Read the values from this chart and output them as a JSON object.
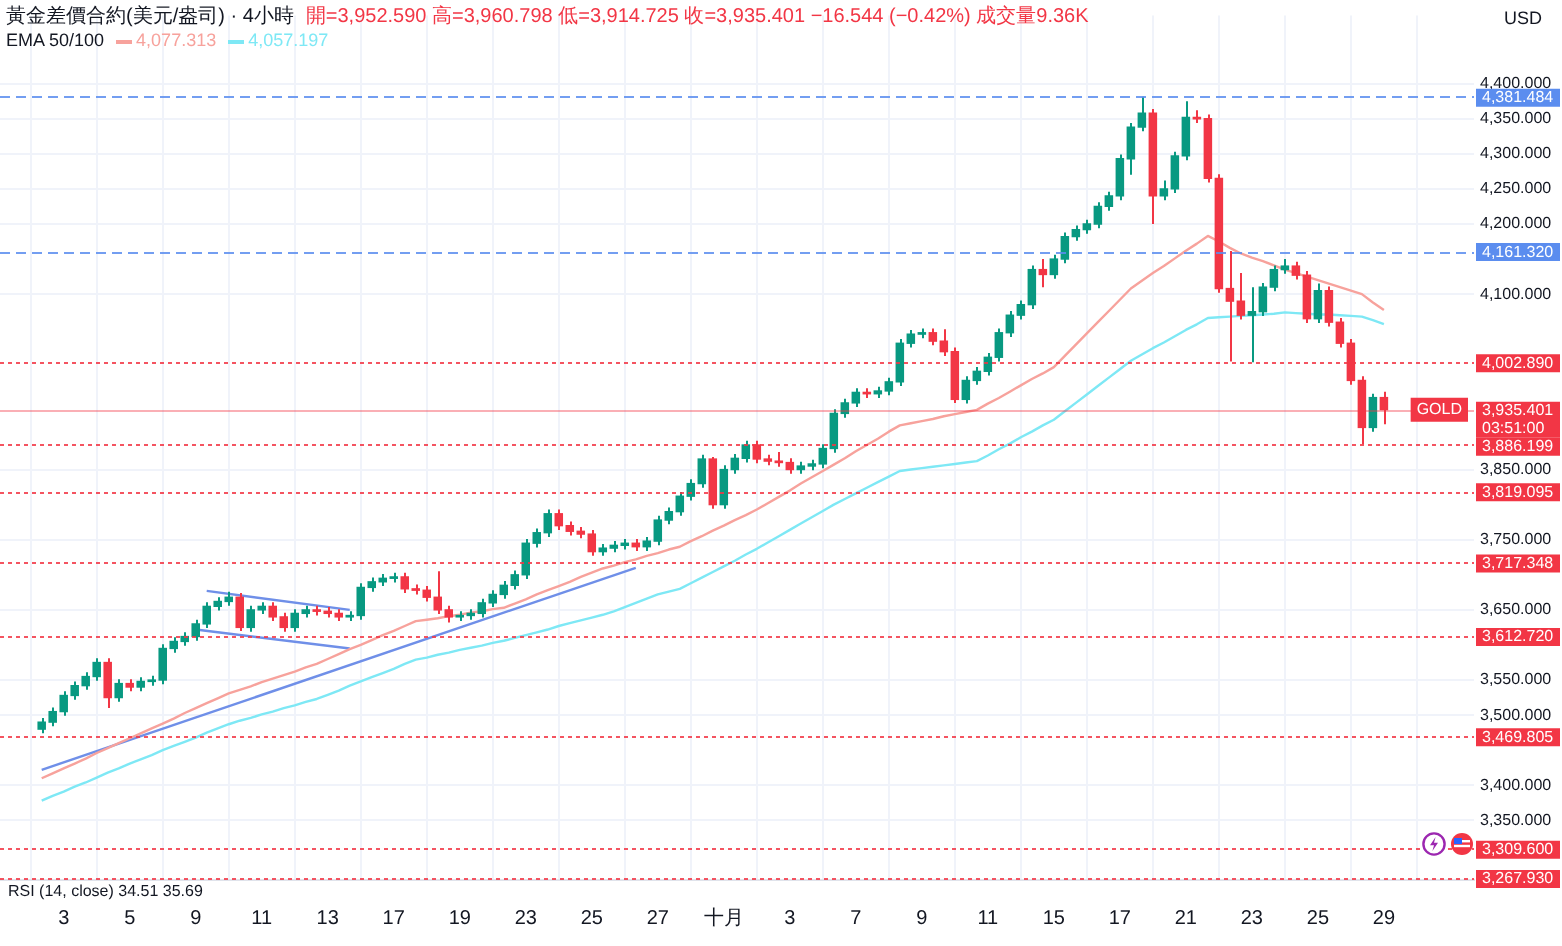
{
  "chart_data": {
    "type": "candlestick",
    "title": "黃金差價合約(美元/盎司) · 4小時",
    "subtitle": "開=3,952.590 高=3,960.798 低=3,914.725 收=3,935.401 −16.544 (−0.42%) 成交量9.36K",
    "ylabel": "USD",
    "categories": [
      null,
      null,
      "3",
      null,
      null,
      null,
      null,
      null,
      "5",
      null,
      null,
      null,
      null,
      null,
      "9",
      null,
      null,
      null,
      null,
      null,
      "11",
      null,
      null,
      null,
      null,
      null,
      "13",
      null,
      null,
      null,
      null,
      null,
      "17",
      null,
      null,
      null,
      null,
      null,
      "19",
      null,
      null,
      null,
      null,
      null,
      "23",
      null,
      null,
      null,
      null,
      null,
      "25",
      null,
      null,
      null,
      null,
      null,
      "27",
      null,
      null,
      null,
      null,
      null,
      "十月",
      null,
      null,
      null,
      null,
      null,
      "3",
      null,
      null,
      null,
      null,
      null,
      "7",
      null,
      null,
      null,
      null,
      null,
      "9",
      null,
      null,
      null,
      null,
      null,
      "11",
      null,
      null,
      null,
      null,
      null,
      "15",
      null,
      null,
      null,
      null,
      null,
      "17",
      null,
      null,
      null,
      null,
      null,
      "21",
      null,
      null,
      null,
      null,
      null,
      "23",
      null,
      null,
      null,
      null,
      null,
      "25",
      null,
      null,
      null,
      null,
      null,
      "29"
    ],
    "ohlc": [
      [
        3480,
        3496,
        3474,
        3490
      ],
      [
        3490,
        3511,
        3484,
        3505
      ],
      [
        3505,
        3534,
        3499,
        3528
      ],
      [
        3528,
        3548,
        3522,
        3542
      ],
      [
        3542,
        3561,
        3536,
        3555
      ],
      [
        3555,
        3581,
        3549,
        3575
      ],
      [
        3575,
        3581,
        3510,
        3525
      ],
      [
        3525,
        3551,
        3519,
        3545
      ],
      [
        3545,
        3551,
        3534,
        3540
      ],
      [
        3540,
        3554,
        3534,
        3548
      ],
      [
        3548,
        3556,
        3542,
        3550
      ],
      [
        3550,
        3601,
        3544,
        3595
      ],
      [
        3595,
        3611,
        3589,
        3605
      ],
      [
        3605,
        3618,
        3599,
        3612
      ],
      [
        3612,
        3636,
        3606,
        3630
      ],
      [
        3630,
        3661,
        3624,
        3655
      ],
      [
        3655,
        3668,
        3649,
        3662
      ],
      [
        3662,
        3676,
        3656,
        3668
      ],
      [
        3668,
        3674,
        3620,
        3625
      ],
      [
        3625,
        3656,
        3619,
        3650
      ],
      [
        3650,
        3661,
        3644,
        3655
      ],
      [
        3655,
        3661,
        3634,
        3640
      ],
      [
        3640,
        3646,
        3619,
        3625
      ],
      [
        3625,
        3651,
        3619,
        3645
      ],
      [
        3645,
        3656,
        3639,
        3650
      ],
      [
        3650,
        3656,
        3642,
        3648
      ],
      [
        3648,
        3654,
        3639,
        3645
      ],
      [
        3645,
        3651,
        3634,
        3640
      ],
      [
        3640,
        3648,
        3634,
        3642
      ],
      [
        3642,
        3688,
        3636,
        3682
      ],
      [
        3682,
        3696,
        3676,
        3690
      ],
      [
        3690,
        3701,
        3684,
        3695
      ],
      [
        3695,
        3703,
        3689,
        3697
      ],
      [
        3697,
        3703,
        3674,
        3680
      ],
      [
        3680,
        3686,
        3672,
        3678
      ],
      [
        3678,
        3684,
        3662,
        3668
      ],
      [
        3668,
        3705,
        3644,
        3650
      ],
      [
        3650,
        3656,
        3632,
        3640
      ],
      [
        3640,
        3648,
        3634,
        3642
      ],
      [
        3642,
        3651,
        3636,
        3645
      ],
      [
        3645,
        3666,
        3639,
        3660
      ],
      [
        3660,
        3678,
        3654,
        3672
      ],
      [
        3672,
        3691,
        3666,
        3685
      ],
      [
        3685,
        3706,
        3679,
        3700
      ],
      [
        3700,
        3751,
        3694,
        3745
      ],
      [
        3745,
        3766,
        3739,
        3760
      ],
      [
        3760,
        3793,
        3754,
        3787
      ],
      [
        3787,
        3793,
        3764,
        3770
      ],
      [
        3770,
        3776,
        3756,
        3762
      ],
      [
        3762,
        3768,
        3752,
        3758
      ],
      [
        3758,
        3764,
        3727,
        3733
      ],
      [
        3733,
        3744,
        3727,
        3738
      ],
      [
        3738,
        3748,
        3732,
        3742
      ],
      [
        3742,
        3751,
        3736,
        3745
      ],
      [
        3745,
        3751,
        3734,
        3740
      ],
      [
        3740,
        3754,
        3734,
        3748
      ],
      [
        3748,
        3784,
        3742,
        3778
      ],
      [
        3778,
        3796,
        3772,
        3790
      ],
      [
        3790,
        3818,
        3784,
        3812
      ],
      [
        3812,
        3836,
        3806,
        3830
      ],
      [
        3830,
        3871,
        3824,
        3865
      ],
      [
        3865,
        3868,
        3794,
        3800
      ],
      [
        3800,
        3856,
        3794,
        3850
      ],
      [
        3850,
        3872,
        3844,
        3866
      ],
      [
        3866,
        3891,
        3860,
        3885
      ],
      [
        3885,
        3891,
        3859,
        3865
      ],
      [
        3865,
        3871,
        3856,
        3862
      ],
      [
        3862,
        3875,
        3854,
        3860
      ],
      [
        3860,
        3866,
        3844,
        3850
      ],
      [
        3850,
        3861,
        3844,
        3855
      ],
      [
        3855,
        3864,
        3849,
        3858
      ],
      [
        3858,
        3886,
        3852,
        3880
      ],
      [
        3880,
        3936,
        3874,
        3930
      ],
      [
        3930,
        3951,
        3924,
        3945
      ],
      [
        3945,
        3966,
        3939,
        3960
      ],
      [
        3960,
        3966,
        3952,
        3958
      ],
      [
        3958,
        3968,
        3952,
        3962
      ],
      [
        3962,
        3981,
        3956,
        3975
      ],
      [
        3975,
        4036,
        3969,
        4030
      ],
      [
        4030,
        4049,
        4024,
        4043
      ],
      [
        4043,
        4051,
        4037,
        4045
      ],
      [
        4045,
        4051,
        4027,
        4033
      ],
      [
        4033,
        4050,
        4012,
        4018
      ],
      [
        4018,
        4024,
        3945,
        3950
      ],
      [
        3950,
        3983,
        3944,
        3977
      ],
      [
        3977,
        3996,
        3971,
        3990
      ],
      [
        3990,
        4016,
        3984,
        4010
      ],
      [
        4010,
        4051,
        4004,
        4045
      ],
      [
        4045,
        4076,
        4039,
        4070
      ],
      [
        4070,
        4091,
        4064,
        4085
      ],
      [
        4085,
        4141,
        4079,
        4135
      ],
      [
        4135,
        4150,
        4110,
        4128
      ],
      [
        4128,
        4156,
        4122,
        4150
      ],
      [
        4150,
        4188,
        4144,
        4182
      ],
      [
        4182,
        4198,
        4176,
        4192
      ],
      [
        4192,
        4206,
        4186,
        4200
      ],
      [
        4200,
        4231,
        4194,
        4225
      ],
      [
        4225,
        4246,
        4219,
        4240
      ],
      [
        4240,
        4299,
        4234,
        4293
      ],
      [
        4293,
        4344,
        4270,
        4338
      ],
      [
        4338,
        4381.484,
        4332,
        4358
      ],
      [
        4358,
        4364,
        4200,
        4240
      ],
      [
        4240,
        4262,
        4234,
        4250
      ],
      [
        4250,
        4303,
        4244,
        4297
      ],
      [
        4297,
        4375,
        4291,
        4352
      ],
      [
        4352,
        4362,
        4344,
        4350
      ],
      [
        4350,
        4356,
        4259,
        4265
      ],
      [
        4265,
        4271,
        4102,
        4108
      ],
      [
        4108,
        4161.32,
        4004,
        4090
      ],
      [
        4090,
        4130,
        4064,
        4070
      ],
      [
        4070,
        4110,
        4003,
        4075
      ],
      [
        4075,
        4116,
        4069,
        4110
      ],
      [
        4110,
        4141,
        4104,
        4135
      ],
      [
        4135,
        4150,
        4129,
        4140
      ],
      [
        4140,
        4146,
        4121,
        4127
      ],
      [
        4127,
        4133,
        4059,
        4065
      ],
      [
        4065,
        4115,
        4059,
        4105
      ],
      [
        4105,
        4111,
        4054,
        4060
      ],
      [
        4060,
        4066,
        4024,
        4030
      ],
      [
        4030,
        4036,
        3971,
        3977
      ],
      [
        3977,
        3983,
        3886.199,
        3910
      ],
      [
        3910,
        3958,
        3904,
        3952.59
      ],
      [
        3952.59,
        3960.798,
        3914.725,
        3935.401
      ]
    ],
    "series": [
      {
        "name": "4,077.313",
        "type": "line",
        "color": "#f7a29c",
        "values": [
          3410,
          3417,
          3424,
          3431,
          3438,
          3446,
          3453,
          3460,
          3467,
          3474,
          3481,
          3488,
          3495,
          3503,
          3510,
          3517,
          3524,
          3531,
          3536,
          3541,
          3547,
          3552,
          3557,
          3562,
          3568,
          3573,
          3580,
          3587,
          3594,
          3600,
          3607,
          3614,
          3620,
          3627,
          3634,
          3636,
          3638,
          3641,
          3643,
          3646,
          3648,
          3651,
          3653,
          3659,
          3665,
          3672,
          3678,
          3684,
          3690,
          3697,
          3703,
          3709,
          3713,
          3718,
          3722,
          3727,
          3731,
          3736,
          3740,
          3748,
          3755,
          3763,
          3770,
          3778,
          3785,
          3793,
          3802,
          3811,
          3820,
          3830,
          3839,
          3848,
          3857,
          3866,
          3876,
          3885,
          3894,
          3904,
          3913,
          3916,
          3919,
          3922,
          3926,
          3929,
          3932,
          3935,
          3944,
          3952,
          3961,
          3970,
          3979,
          3987,
          3996,
          4012,
          4028,
          4044,
          4060,
          4076,
          4092,
          4108,
          4119,
          4130,
          4140,
          4151,
          4162,
          4172,
          4183,
          4175,
          4166,
          4158,
          4152,
          4147,
          4141,
          4135,
          4130,
          4125,
          4120,
          4115,
          4110,
          4105,
          4100,
          4088,
          4077.313
        ]
      },
      {
        "name": "4,057.197",
        "type": "line",
        "color": "#7ee8f5",
        "values": [
          3378,
          3385,
          3391,
          3398,
          3404,
          3411,
          3418,
          3424,
          3431,
          3437,
          3443,
          3450,
          3456,
          3462,
          3468,
          3475,
          3481,
          3487,
          3492,
          3496,
          3501,
          3505,
          3510,
          3514,
          3519,
          3523,
          3529,
          3535,
          3542,
          3548,
          3554,
          3560,
          3566,
          3573,
          3579,
          3582,
          3586,
          3589,
          3593,
          3596,
          3599,
          3603,
          3606,
          3610,
          3614,
          3618,
          3622,
          3627,
          3631,
          3635,
          3639,
          3643,
          3648,
          3654,
          3660,
          3666,
          3672,
          3676,
          3680,
          3688,
          3696,
          3704,
          3712,
          3720,
          3729,
          3737,
          3746,
          3755,
          3764,
          3773,
          3782,
          3791,
          3800,
          3808,
          3816,
          3824,
          3832,
          3840,
          3848,
          3850,
          3852,
          3854,
          3856,
          3858,
          3860,
          3862,
          3870,
          3879,
          3887,
          3896,
          3904,
          3913,
          3921,
          3933,
          3945,
          3957,
          3969,
          3981,
          3993,
          4005,
          4014,
          4023,
          4031,
          4040,
          4049,
          4057,
          4066,
          4067,
          4068,
          4069,
          4070,
          4071,
          4072,
          4074,
          4073,
          4072,
          4071,
          4071,
          4070,
          4069,
          4068,
          4063,
          4057.197
        ]
      },
      {
        "type": "line",
        "color": "#6f8fe8",
        "values": [
          null,
          null,
          null,
          null,
          null,
          null,
          null,
          null,
          null,
          null,
          null,
          null,
          null,
          null,
          null,
          3677,
          null,
          null,
          null,
          null,
          null,
          null,
          null,
          null,
          null,
          null,
          null,
          null,
          3650,
          null,
          null,
          null,
          null,
          null,
          null,
          null,
          null,
          null,
          null,
          null,
          null,
          null,
          null,
          null,
          null,
          null,
          null,
          null,
          null,
          null,
          null,
          null,
          null,
          null,
          null,
          null,
          null,
          null,
          null,
          null,
          null,
          null,
          null,
          null,
          null,
          null,
          null,
          null,
          null,
          null,
          null,
          null,
          null,
          null,
          null,
          null,
          null,
          null,
          null,
          null,
          null,
          null,
          null,
          null,
          null,
          null,
          null,
          null,
          null,
          null,
          null,
          null,
          null,
          null,
          null,
          null,
          null,
          null,
          null,
          null,
          null,
          null,
          null,
          null,
          null,
          null,
          null,
          null,
          null,
          null,
          null,
          null,
          null,
          null,
          null,
          null,
          null,
          null,
          null,
          null,
          null,
          null,
          null
        ]
      },
      {
        "type": "line",
        "color": "#6f8fe8",
        "values": [
          null,
          null,
          null,
          null,
          null,
          null,
          null,
          null,
          null,
          null,
          null,
          null,
          null,
          null,
          3622,
          null,
          null,
          null,
          null,
          null,
          null,
          null,
          null,
          null,
          null,
          null,
          null,
          null,
          3595,
          null,
          null,
          null,
          null,
          null,
          null,
          null,
          null,
          null,
          null,
          null,
          null,
          null,
          null,
          null,
          null,
          null,
          null,
          null,
          null,
          null,
          null,
          null,
          null,
          null,
          null,
          null,
          null,
          null,
          null,
          null,
          null,
          null,
          null,
          null,
          null,
          null,
          null,
          null,
          null,
          null,
          null,
          null,
          null,
          null,
          null,
          null,
          null,
          null,
          null,
          null,
          null,
          null,
          null,
          null,
          null,
          null,
          null,
          null,
          null,
          null,
          null,
          null,
          null,
          null,
          null,
          null,
          null,
          null,
          null,
          null,
          null,
          null,
          null,
          null,
          null,
          null,
          null,
          null,
          null,
          null,
          null,
          null,
          null,
          null,
          null,
          null,
          null,
          null,
          null,
          null,
          null,
          null,
          null
        ]
      },
      {
        "type": "line",
        "color": "#6f8fe8",
        "values": [
          3422,
          null,
          null,
          null,
          null,
          null,
          null,
          null,
          null,
          null,
          null,
          null,
          null,
          null,
          null,
          null,
          null,
          null,
          null,
          null,
          null,
          null,
          null,
          null,
          null,
          null,
          null,
          null,
          null,
          null,
          null,
          null,
          null,
          null,
          null,
          null,
          null,
          null,
          null,
          null,
          null,
          null,
          null,
          null,
          null,
          null,
          null,
          null,
          null,
          null,
          null,
          null,
          null,
          null,
          3710,
          null,
          null,
          null,
          null,
          null,
          null,
          null,
          null,
          null,
          null,
          null,
          null,
          null,
          null,
          null,
          null,
          null,
          null,
          null,
          null,
          null,
          null,
          null,
          null,
          null,
          null,
          null,
          null,
          null,
          null,
          null,
          null,
          null,
          null,
          null,
          null,
          null,
          null,
          null,
          null,
          null,
          null,
          null,
          null,
          null,
          null,
          null,
          null,
          null,
          null,
          null,
          null,
          null,
          null,
          null,
          null,
          null,
          null,
          null,
          null,
          null,
          null,
          null,
          null,
          null,
          null,
          null,
          null
        ]
      }
    ],
    "legend": "top left",
    "legend_title": "EMA 50/100",
    "marker": "none",
    "grid": true,
    "ylim": [
      3265,
      4497
    ],
    "yticks": [
      {
        "value": 4400,
        "label": "4,400.000"
      },
      {
        "value": 4350,
        "label": "4,350.000"
      },
      {
        "value": 4300,
        "label": "4,300.000"
      },
      {
        "value": 4250,
        "label": "4,250.000"
      },
      {
        "value": 4200,
        "label": "4,200.000"
      },
      {
        "value": 4100,
        "label": "4,100.000"
      },
      {
        "value": 3850,
        "label": "3,850.000"
      },
      {
        "value": 3750,
        "label": "3,750.000"
      },
      {
        "value": 3650,
        "label": "3,650.000"
      },
      {
        "value": 3550,
        "label": "3,550.000"
      },
      {
        "value": 3500,
        "label": "3,500.000"
      },
      {
        "value": 3400,
        "label": "3,400.000"
      },
      {
        "value": 3350,
        "label": "3,350.000"
      }
    ],
    "ref_lines": [
      {
        "axis": "y",
        "value": 4381.484,
        "label": "4,381.484",
        "color": "#5b8def",
        "line_style": "dashed"
      },
      {
        "axis": "y",
        "value": 4161.32,
        "label": "4,161.320",
        "color": "#5b8def",
        "line_style": "dashed"
      },
      {
        "axis": "y",
        "value": 4002.89,
        "label": "4,002.890",
        "color": "#f23645",
        "line_style": "dotted"
      },
      {
        "axis": "y",
        "value": 3935.401,
        "label": "3,935.401\n03:51:00",
        "color": "#f23645",
        "line_style": "solid"
      },
      {
        "axis": "y",
        "value": 3886.199,
        "label": "3,886.199",
        "color": "#f23645",
        "line_style": "dotted"
      },
      {
        "axis": "y",
        "value": 3819.095,
        "label": "3,819.095",
        "color": "#f23645",
        "line_style": "dotted"
      },
      {
        "axis": "y",
        "value": 3717.348,
        "label": "3,717.348",
        "color": "#f23645",
        "line_style": "dotted"
      },
      {
        "axis": "y",
        "value": 3612.72,
        "label": "3,612.720",
        "color": "#f23645",
        "line_style": "dotted"
      },
      {
        "axis": "y",
        "value": 3469.805,
        "label": "3,469.805",
        "color": "#f23645",
        "line_style": "dotted"
      },
      {
        "axis": "y",
        "value": 3309.6,
        "label": "3,309.600",
        "color": "#f23645",
        "line_style": "dotted"
      },
      {
        "axis": "y",
        "value": 3267.93,
        "label": "3,267.930",
        "color": "#f23645",
        "line_style": "dotted"
      }
    ],
    "annotations": [
      {
        "text": "GOLD",
        "y": 3935.401
      },
      "RSI (14, close) 34.51 35.69"
    ]
  }
}
